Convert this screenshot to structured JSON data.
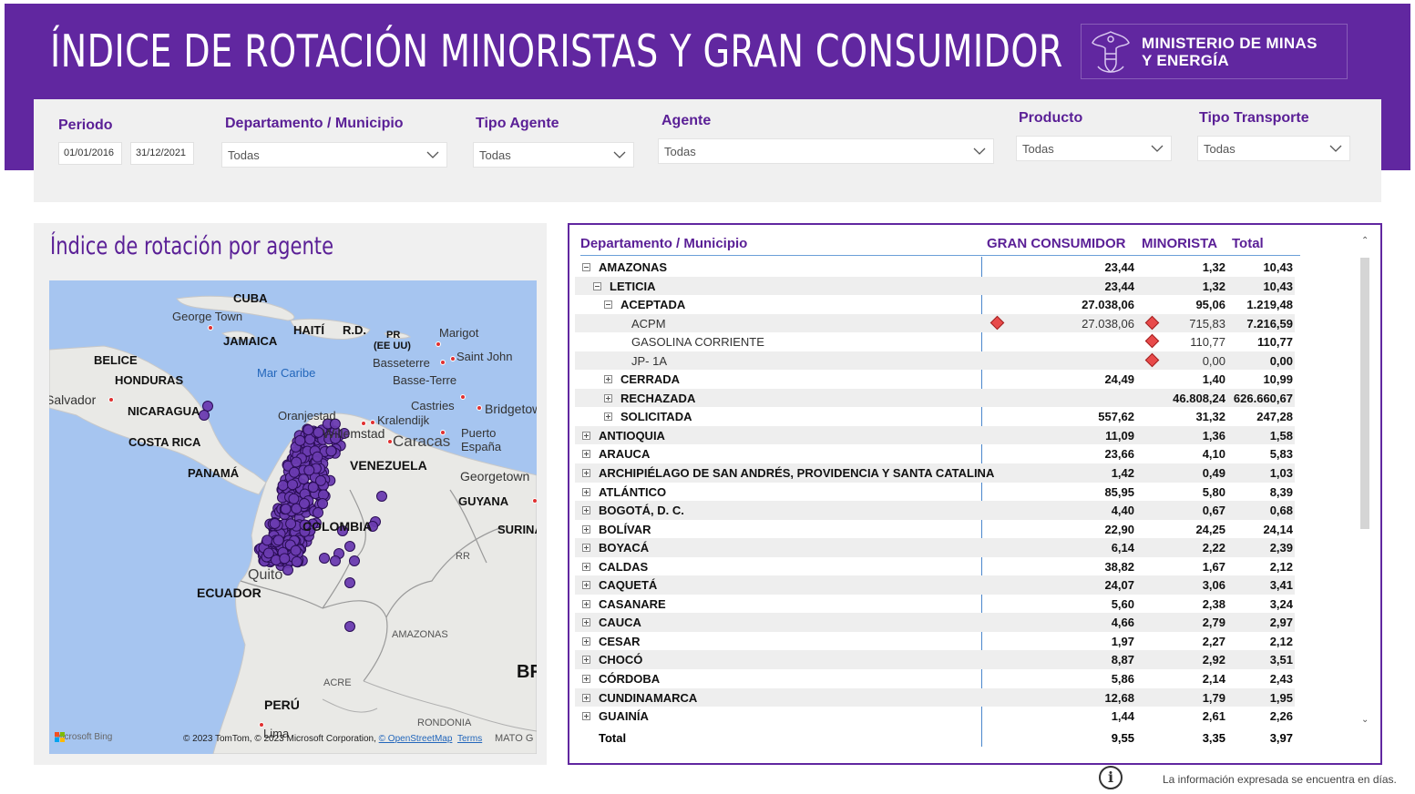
{
  "title": "ÍNDICE DE ROTACIÓN MINORISTAS Y GRAN CONSUMIDOR",
  "logo": {
    "line1": "MINISTERIO DE MINAS",
    "line2": "Y ENERGÍA",
    "icon": "coat-of-arms-icon"
  },
  "filters": {
    "periodo": {
      "label": "Periodo",
      "start": "01/01/2016",
      "end": "31/12/2021"
    },
    "departamento": {
      "label": "Departamento / Municipio",
      "value": "Todas"
    },
    "tipo_agente": {
      "label": "Tipo Agente",
      "value": "Todas"
    },
    "agente": {
      "label": "Agente",
      "value": "Todas"
    },
    "producto": {
      "label": "Producto",
      "value": "Todas"
    },
    "tipo_transporte": {
      "label": "Tipo Transporte",
      "value": "Todas"
    }
  },
  "map": {
    "title": "Índice de rotación por agente",
    "labels": {
      "cuba": "CUBA",
      "george_town": "George Town",
      "haiti": "HAITÍ",
      "rd": "R.D.",
      "pr": "PR",
      "pr2": "(EE UU)",
      "marigot": "Marigot",
      "saint_john": "Saint John",
      "basseterre": "Basseterre",
      "basse_terre": "Basse-Terre",
      "jamaica": "JAMAICA",
      "belice": "BELICE",
      "honduras": "HONDURAS",
      "mar_caribe": "Mar Caribe",
      "salvador": "Salvador",
      "nicaragua": "NICARAGUA",
      "oranjestad": "Oranjestad",
      "kralendijk": "Kralendijk",
      "willemstad": "Willemstad",
      "castries": "Castries",
      "bridgetown": "Bridgetown",
      "puerto": "Puerto",
      "espana": "España",
      "caracas": "Caracas",
      "costa_rica": "COSTA RICA",
      "panama": "PANAMÁ",
      "venezuela": "VENEZUELA",
      "georgetown": "Georgetown",
      "guyana": "GUYANA",
      "colombia": "COLOMBIA",
      "surinam": "SURINAM",
      "rr": "RR",
      "quito": "Quito",
      "ecuador": "ECUADOR",
      "amazonas": "AMAZONAS",
      "acre": "ACRE",
      "brasil": "BRASIL",
      "peru": "PERÚ",
      "lima": "Lima",
      "rondonia": "RONDONIA",
      "mato": "MATO G"
    },
    "credit": {
      "bing": "Microsoft Bing",
      "text": "© 2023 TomTom, © 2023 Microsoft Corporation, ",
      "osm": "© OpenStreetMap",
      "terms": "Terms"
    }
  },
  "table": {
    "headers": {
      "name": "Departamento / Municipio",
      "gran": "GRAN CONSUMIDOR",
      "minorista": "MINORISTA",
      "total": "Total"
    },
    "rows": [
      {
        "level": 0,
        "expander": "minus",
        "name": "AMAZONAS",
        "gran": "23,44",
        "minorista": "1,32",
        "total": "10,43"
      },
      {
        "level": 1,
        "expander": "minus",
        "name": "LETICIA",
        "gran": "23,44",
        "minorista": "1,32",
        "total": "10,43"
      },
      {
        "level": 2,
        "expander": "minus",
        "name": "ACEPTADA",
        "gran": "27.038,06",
        "minorista": "95,06",
        "total": "1.219,48"
      },
      {
        "level": 3,
        "expander": "none",
        "name": "ACPM",
        "gran": "27.038,06",
        "minorista": "715,83",
        "total": "7.216,59",
        "dg": true,
        "dm": true
      },
      {
        "level": 3,
        "expander": "none",
        "name": "GASOLINA CORRIENTE",
        "gran": "",
        "minorista": "110,77",
        "total": "110,77",
        "dm": true
      },
      {
        "level": 3,
        "expander": "none",
        "name": "JP- 1A",
        "gran": "",
        "minorista": "0,00",
        "total": "0,00",
        "dm": true
      },
      {
        "level": 2,
        "expander": "plus",
        "name": "CERRADA",
        "gran": "24,49",
        "minorista": "1,40",
        "total": "10,99"
      },
      {
        "level": 2,
        "expander": "plus",
        "name": "RECHAZADA",
        "gran": "",
        "minorista": "46.808,24",
        "total": "626.660,67"
      },
      {
        "level": 2,
        "expander": "plus",
        "name": "SOLICITADA",
        "gran": "557,62",
        "minorista": "31,32",
        "total": "247,28"
      },
      {
        "level": 0,
        "expander": "plus",
        "name": "ANTIOQUIA",
        "gran": "11,09",
        "minorista": "1,36",
        "total": "1,58"
      },
      {
        "level": 0,
        "expander": "plus",
        "name": "ARAUCA",
        "gran": "23,66",
        "minorista": "4,10",
        "total": "5,83"
      },
      {
        "level": 0,
        "expander": "plus",
        "name": "ARCHIPIÉLAGO DE SAN ANDRÉS, PROVIDENCIA Y SANTA CATALINA",
        "gran": "1,42",
        "minorista": "0,49",
        "total": "1,03"
      },
      {
        "level": 0,
        "expander": "plus",
        "name": "ATLÁNTICO",
        "gran": "85,95",
        "minorista": "5,80",
        "total": "8,39"
      },
      {
        "level": 0,
        "expander": "plus",
        "name": "BOGOTÁ, D. C.",
        "gran": "4,40",
        "minorista": "0,67",
        "total": "0,68"
      },
      {
        "level": 0,
        "expander": "plus",
        "name": "BOLÍVAR",
        "gran": "22,90",
        "minorista": "24,25",
        "total": "24,14"
      },
      {
        "level": 0,
        "expander": "plus",
        "name": "BOYACÁ",
        "gran": "6,14",
        "minorista": "2,22",
        "total": "2,39"
      },
      {
        "level": 0,
        "expander": "plus",
        "name": "CALDAS",
        "gran": "38,82",
        "minorista": "1,67",
        "total": "2,12"
      },
      {
        "level": 0,
        "expander": "plus",
        "name": "CAQUETÁ",
        "gran": "24,07",
        "minorista": "3,06",
        "total": "3,41"
      },
      {
        "level": 0,
        "expander": "plus",
        "name": "CASANARE",
        "gran": "5,60",
        "minorista": "2,38",
        "total": "3,24"
      },
      {
        "level": 0,
        "expander": "plus",
        "name": "CAUCA",
        "gran": "4,66",
        "minorista": "2,79",
        "total": "2,97"
      },
      {
        "level": 0,
        "expander": "plus",
        "name": "CESAR",
        "gran": "1,97",
        "minorista": "2,27",
        "total": "2,12"
      },
      {
        "level": 0,
        "expander": "plus",
        "name": "CHOCÓ",
        "gran": "8,87",
        "minorista": "2,92",
        "total": "3,51"
      },
      {
        "level": 0,
        "expander": "plus",
        "name": "CÓRDOBA",
        "gran": "5,86",
        "minorista": "2,14",
        "total": "2,43"
      },
      {
        "level": 0,
        "expander": "plus",
        "name": "CUNDINAMARCA",
        "gran": "12,68",
        "minorista": "1,79",
        "total": "1,95"
      },
      {
        "level": 0,
        "expander": "plus",
        "name": "GUAINÍA",
        "gran": "1,44",
        "minorista": "2,61",
        "total": "2,26"
      }
    ],
    "total": {
      "label": "Total",
      "gran": "9,55",
      "minorista": "3,35",
      "total": "3,97"
    }
  },
  "footer": {
    "note": "La información expresada se encuentra en días.",
    "info_icon": "info-icon"
  },
  "colors": {
    "brand": "#6127a0",
    "label": "#5a1f96",
    "diamond": "#e84a4a",
    "marker": "#6a3bb0"
  }
}
